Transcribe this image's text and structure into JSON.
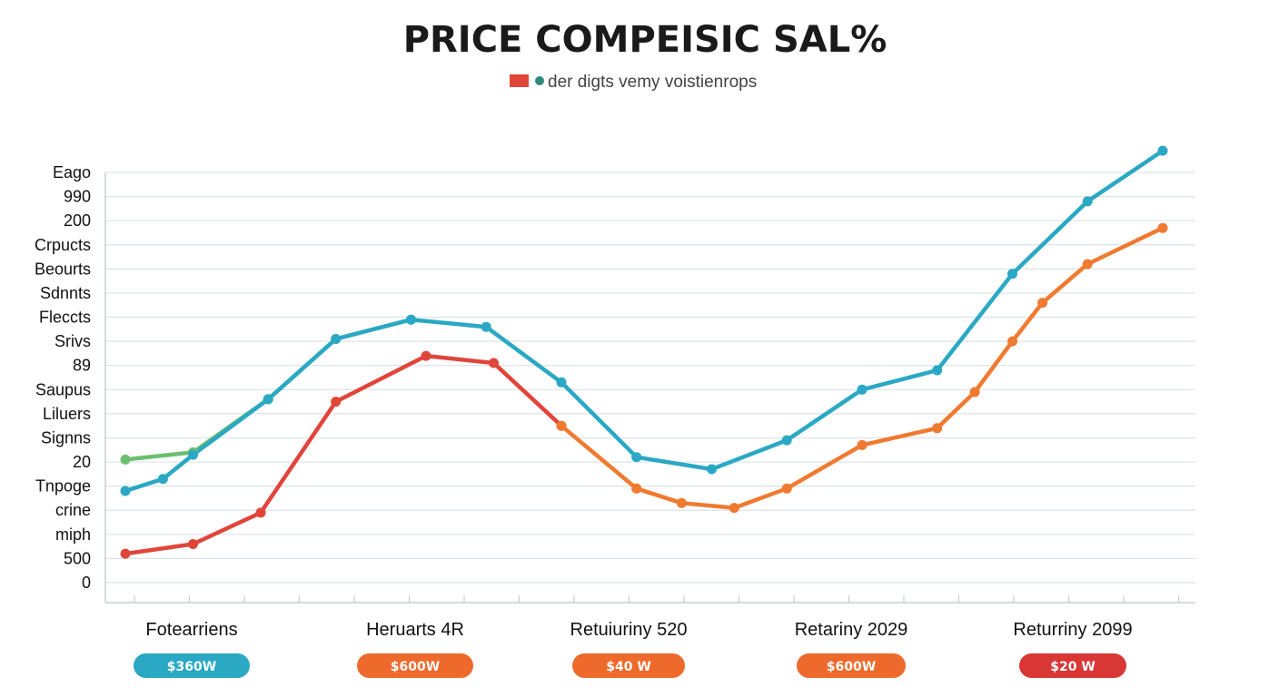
{
  "chart_data": {
    "type": "line",
    "title": "PRICE COMPEISIC SAL%",
    "legend": {
      "text": "der digts vemy voistienrops",
      "swatch_colors": [
        "#e0453a",
        "#2e8b7a"
      ],
      "placement": "top-center"
    },
    "y_tick_labels": [
      "Eago",
      "990",
      "200",
      "Crpucts",
      "Beourts",
      "Sdnnts",
      "Fleccts",
      "Srivs",
      "89",
      "Saupus",
      "Liluers",
      "Signns",
      "20",
      "Tnpoge",
      "crine",
      "miph",
      "500",
      "0"
    ],
    "grid": true,
    "x": [
      0,
      0.9,
      1.9,
      2.8,
      3.8,
      4.8,
      5.8,
      6.8,
      7.8,
      8.8,
      9.8,
      10.8,
      11.8,
      12.8,
      13.8
    ],
    "ylim": [
      0,
      17
    ],
    "categories": [
      {
        "label": "Fotearriens",
        "badge": "$360W",
        "badge_color": "#2aa8c4"
      },
      {
        "label": "Heruarts 4R",
        "badge": "$600W",
        "badge_color": "#ee6a2c"
      },
      {
        "label": "Retuiuriny 520",
        "badge": "$40 W",
        "badge_color": "#ee6a2c"
      },
      {
        "label": "Retariny 2029",
        "badge": "$600W",
        "badge_color": "#ee6a2c"
      },
      {
        "label": "Returriny 2099",
        "badge": "$20 W",
        "badge_color": "#d93636"
      }
    ],
    "series": [
      {
        "color": "#6cbf6e",
        "points": [
          [
            0,
            5.1
          ],
          [
            0.9,
            5.4
          ],
          [
            1.9,
            7.6
          ],
          [
            2.8,
            10.1
          ],
          [
            3.8,
            10.9
          ]
        ]
      },
      {
        "color": "#2aa8c4",
        "points": [
          [
            0,
            3.8
          ],
          [
            0.5,
            4.3
          ],
          [
            0.9,
            5.3
          ],
          [
            1.9,
            7.6
          ],
          [
            2.8,
            10.1
          ],
          [
            3.8,
            10.9
          ],
          [
            4.8,
            10.6
          ],
          [
            5.8,
            8.3
          ],
          [
            6.8,
            5.2
          ],
          [
            7.8,
            4.7
          ],
          [
            8.8,
            5.9
          ],
          [
            9.8,
            8.0
          ],
          [
            10.8,
            8.8
          ],
          [
            11.8,
            12.8
          ],
          [
            12.8,
            15.8
          ],
          [
            13.8,
            17.9
          ]
        ]
      },
      {
        "color": "#e0453a",
        "points": [
          [
            0,
            1.2
          ],
          [
            0.9,
            1.6
          ],
          [
            1.8,
            2.9
          ],
          [
            2.8,
            7.5
          ],
          [
            4.0,
            9.4
          ],
          [
            4.9,
            9.1
          ],
          [
            5.8,
            6.5
          ]
        ]
      },
      {
        "color": "#ef7a30",
        "points": [
          [
            5.8,
            6.5
          ],
          [
            6.8,
            3.9
          ],
          [
            7.4,
            3.3
          ],
          [
            8.1,
            3.1
          ],
          [
            8.8,
            3.9
          ],
          [
            9.8,
            5.7
          ],
          [
            10.8,
            6.4
          ],
          [
            11.3,
            7.9
          ],
          [
            11.8,
            10.0
          ],
          [
            12.2,
            11.6
          ],
          [
            12.8,
            13.2
          ],
          [
            13.8,
            14.7
          ]
        ]
      }
    ]
  }
}
